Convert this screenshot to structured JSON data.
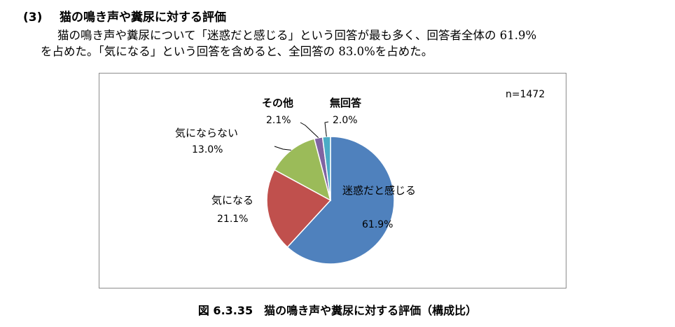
{
  "section": {
    "number": "(3)",
    "title": "猫の鳴き声や糞尿に対する評価"
  },
  "paragraph": {
    "line1": "猫の鳴き声や糞尿について「迷惑だと感じる」という回答が最も多く、回答者全体の 61.9%",
    "line2": "を占めた。「気になる」という回答を含めると、全回答の 83.0%を占めた。"
  },
  "chart_data": {
    "type": "pie",
    "sample_size_label": "n=1472",
    "slices": [
      {
        "name": "迷惑だと感じる",
        "value": 61.9,
        "value_label": "61.9%",
        "color": "#4f81bd"
      },
      {
        "name": "気になる",
        "value": 21.1,
        "value_label": "21.1%",
        "color": "#c0504d"
      },
      {
        "name": "気にならない",
        "value": 13.0,
        "value_label": "13.0%",
        "color": "#9bbb59"
      },
      {
        "name": "その他",
        "value": 2.1,
        "value_label": "2.1%",
        "color": "#8064a2"
      },
      {
        "name": "無回答",
        "value": 2.0,
        "value_label": "2.0%",
        "color": "#4bacc6"
      }
    ],
    "start_angle_deg": 90,
    "direction": "clockwise"
  },
  "caption": "図 6.3.35　猫の鳴き声や糞尿に対する評価（構成比）"
}
